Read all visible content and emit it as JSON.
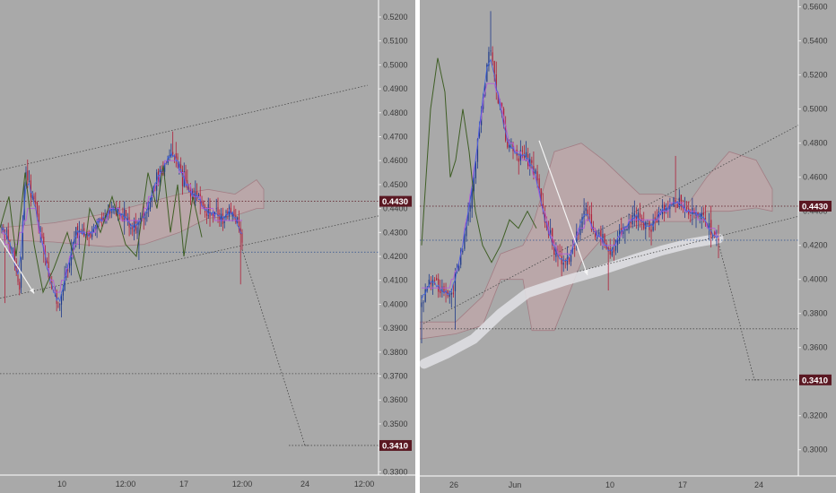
{
  "chart_data": [
    {
      "type": "candlestick",
      "title": "",
      "xlabel": "",
      "ylabel": "",
      "grid": false,
      "x_tick_labels": [
        "10",
        "12:00",
        "17",
        "12:00",
        "24",
        "12:00"
      ],
      "y_tick_labels": [
        "0.5200",
        "0.5100",
        "0.5000",
        "0.4900",
        "0.4800",
        "0.4700",
        "0.4600",
        "0.4500",
        "0.4400",
        "0.4300",
        "0.4200",
        "0.4100",
        "0.4000",
        "0.3900",
        "0.3800",
        "0.3700",
        "0.3600",
        "0.3500",
        "0.3400",
        "0.3300"
      ],
      "ylim": [
        0.329,
        0.523
      ],
      "price_labels": [
        "0.4430",
        "0.3410"
      ],
      "levels": [
        0.443,
        0.4218,
        0.371,
        0.341
      ],
      "colors": {
        "up": "#1f3a8a",
        "down": "#b0203a",
        "ichimoku_cloud": "#c9a6a9",
        "label_bg": "#5a1822"
      }
    },
    {
      "type": "candlestick",
      "title": "",
      "xlabel": "",
      "ylabel": "",
      "grid": false,
      "x_tick_labels": [
        "26",
        "Jun",
        "10",
        "17",
        "24"
      ],
      "y_tick_labels": [
        "0.5600",
        "0.5400",
        "0.5200",
        "0.5000",
        "0.4800",
        "0.4600",
        "0.4400",
        "0.4200",
        "0.4000",
        "0.3800",
        "0.3600",
        "0.3400",
        "0.3200",
        "0.3000"
      ],
      "ylim": [
        0.2846,
        0.5614
      ],
      "price_labels": [
        "0.4430",
        "0.3410"
      ],
      "levels": [
        0.443,
        0.423,
        0.371,
        0.341
      ],
      "colors": {
        "up": "#1f3a8a",
        "down": "#b0203a",
        "ichimoku_cloud": "#c9a6a9",
        "label_bg": "#5a1822"
      }
    }
  ]
}
